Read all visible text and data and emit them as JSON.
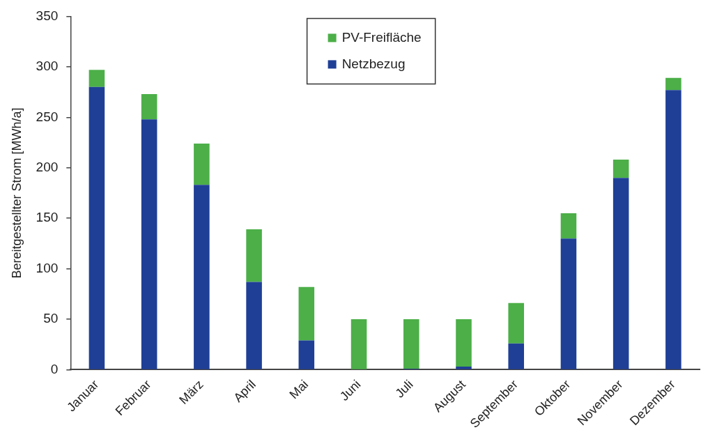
{
  "chart_data": {
    "type": "bar",
    "stacked": true,
    "ylabel": "Bereitgestellter Strom [MWh/a]",
    "categories": [
      "Januar",
      "Februar",
      "März",
      "April",
      "Mai",
      "Juni",
      "Juli",
      "August",
      "September",
      "Oktober",
      "November",
      "Dezember"
    ],
    "series": [
      {
        "name": "Netzbezug",
        "color": "#1f3f96",
        "values": [
          280,
          248,
          183,
          87,
          29,
          0,
          1,
          3,
          26,
          130,
          190,
          277
        ]
      },
      {
        "name": "PV-Freifläche",
        "color": "#4caf48",
        "values": [
          17,
          25,
          41,
          52,
          53,
          50,
          49,
          47,
          40,
          25,
          18,
          12
        ]
      }
    ],
    "ylim": [
      0,
      350
    ],
    "yticks": [
      0,
      50,
      100,
      150,
      200,
      250,
      300,
      350
    ],
    "grid": false,
    "legend": "top"
  }
}
